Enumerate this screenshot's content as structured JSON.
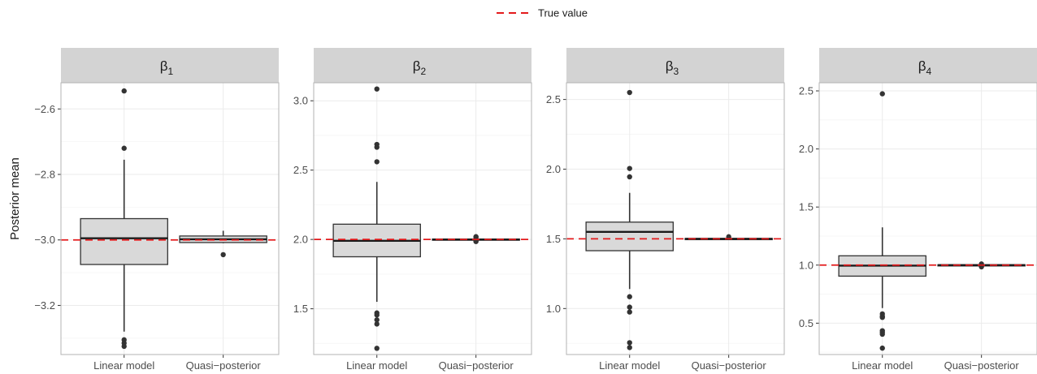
{
  "legend": {
    "label": "True value",
    "color": "#e31a1c"
  },
  "ylabel": "Posterior mean",
  "categories": [
    "Linear model",
    "Quasi−posterior"
  ],
  "colors": {
    "box_fill": "#d9d9d9",
    "box_stroke": "#333333",
    "strip_bg": "#d3d3d3",
    "panel_border": "#b3b3b3",
    "grid_major": "#ebebeb",
    "grid_minor": "#f5f5f5",
    "true_line": "#e31a1c"
  },
  "chart_data": [
    {
      "type": "box",
      "facet_label": "β",
      "facet_sub": "1",
      "true_value": -3.0,
      "ylim": [
        -3.35,
        -2.52
      ],
      "yticks": [
        -3.2,
        -3.0,
        -2.8,
        -2.6
      ],
      "ytick_labels": [
        "−3.2",
        "−3.0",
        "−2.8",
        "−2.6"
      ],
      "boxes": [
        {
          "category": "Linear model",
          "lower_whisker": -3.28,
          "q1": -3.075,
          "median": -2.995,
          "q3": -2.935,
          "upper_whisker": -2.755,
          "outliers": [
            -2.545,
            -2.72,
            -3.305,
            -3.315,
            -3.325
          ]
        },
        {
          "category": "Quasi−posterior",
          "lower_whisker": -3.01,
          "q1": -3.008,
          "median": -2.998,
          "q3": -2.988,
          "upper_whisker": -2.972,
          "outliers": [
            -3.045
          ]
        }
      ]
    },
    {
      "type": "box",
      "facet_label": "β",
      "facet_sub": "2",
      "true_value": 2.0,
      "ylim": [
        1.17,
        3.13
      ],
      "yticks": [
        1.5,
        2.0,
        2.5,
        3.0
      ],
      "ytick_labels": [
        "1.5",
        "2.0",
        "2.5",
        "3.0"
      ],
      "boxes": [
        {
          "category": "Linear model",
          "lower_whisker": 1.55,
          "q1": 1.875,
          "median": 1.99,
          "q3": 2.11,
          "upper_whisker": 2.415,
          "outliers": [
            3.085,
            2.685,
            2.665,
            2.56,
            1.47,
            1.455,
            1.42,
            1.39,
            1.215
          ]
        },
        {
          "category": "Quasi−posterior",
          "lower_whisker": 1.993,
          "q1": 1.997,
          "median": 2.0,
          "q3": 2.003,
          "upper_whisker": 2.007,
          "outliers": [
            2.02,
            2.015,
            1.985,
            1.99
          ]
        }
      ]
    },
    {
      "type": "box",
      "facet_label": "β",
      "facet_sub": "3",
      "true_value": 1.5,
      "ylim": [
        0.67,
        2.62
      ],
      "yticks": [
        1.0,
        1.5,
        2.0,
        2.5
      ],
      "ytick_labels": [
        "1.0",
        "1.5",
        "2.0",
        "2.5"
      ],
      "boxes": [
        {
          "category": "Linear model",
          "lower_whisker": 1.14,
          "q1": 1.415,
          "median": 1.55,
          "q3": 1.62,
          "upper_whisker": 1.83,
          "outliers": [
            2.55,
            2.005,
            1.945,
            1.085,
            1.01,
            0.975,
            0.755,
            0.72
          ]
        },
        {
          "category": "Quasi−posterior",
          "lower_whisker": 1.493,
          "q1": 1.497,
          "median": 1.5,
          "q3": 1.503,
          "upper_whisker": 1.507,
          "outliers": [
            1.515
          ]
        }
      ]
    },
    {
      "type": "box",
      "facet_label": "β",
      "facet_sub": "4",
      "true_value": 1.0,
      "ylim": [
        0.23,
        2.57
      ],
      "yticks": [
        0.5,
        1.0,
        1.5,
        2.0,
        2.5
      ],
      "ytick_labels": [
        "0.5",
        "1.0",
        "1.5",
        "2.0",
        "2.5"
      ],
      "boxes": [
        {
          "category": "Linear model",
          "lower_whisker": 0.63,
          "q1": 0.905,
          "median": 0.995,
          "q3": 1.08,
          "upper_whisker": 1.325,
          "outliers": [
            2.475,
            0.58,
            0.56,
            0.55,
            0.435,
            0.42,
            0.405,
            0.285
          ]
        },
        {
          "category": "Quasi−posterior",
          "lower_whisker": 0.993,
          "q1": 0.997,
          "median": 1.0,
          "q3": 1.003,
          "upper_whisker": 1.007,
          "outliers": [
            1.01,
            0.985
          ]
        }
      ]
    }
  ]
}
